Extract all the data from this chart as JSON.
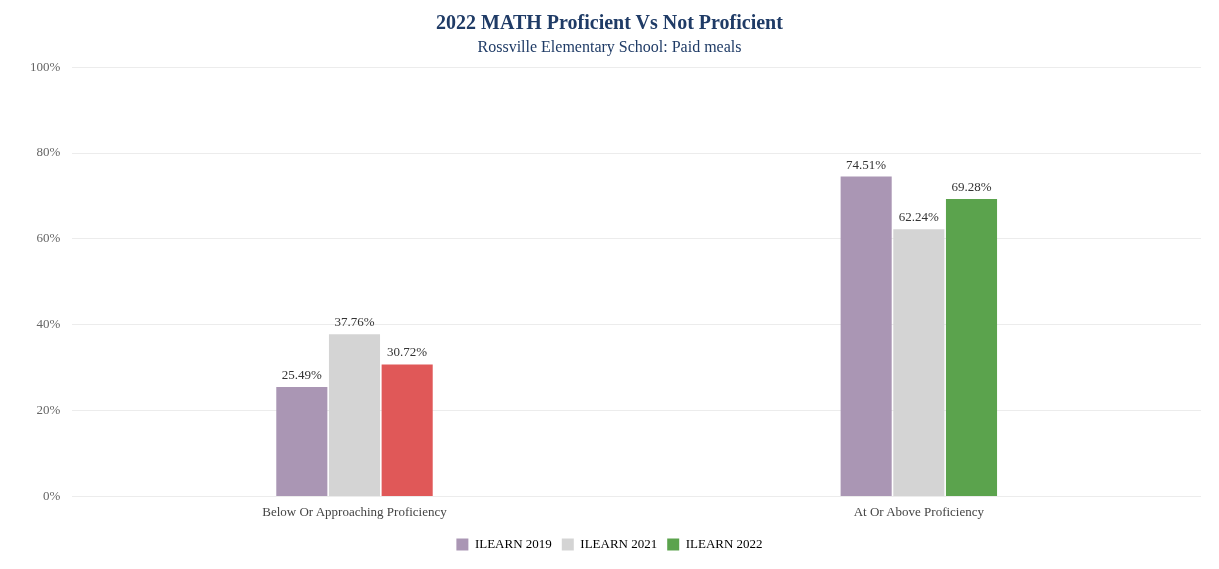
{
  "chart_data": {
    "type": "bar",
    "title": "2022 MATH Proficient Vs Not Proficient",
    "subtitle": "Rossville Elementary School: Paid meals",
    "categories": [
      "Below Or Approaching Proficiency",
      "At Or Above Proficiency"
    ],
    "series": [
      {
        "name": "ILEARN 2019",
        "color": "#aa96b4",
        "values": [
          25.49,
          74.51
        ],
        "value_labels": [
          "25.49%",
          "74.51%"
        ]
      },
      {
        "name": "ILEARN 2021",
        "color": "#d4d4d4",
        "values": [
          37.76,
          62.24
        ],
        "value_labels": [
          "37.76%",
          "62.24%"
        ]
      },
      {
        "name": "ILEARN 2022",
        "color": "#5ba34d",
        "colors": [
          "#e05858",
          "#5ba34d"
        ],
        "values": [
          30.72,
          69.28
        ],
        "value_labels": [
          "30.72%",
          "69.28%"
        ]
      }
    ],
    "ylim": [
      0,
      100
    ],
    "yticks": [
      {
        "value": 0,
        "label": "0%"
      },
      {
        "value": 20,
        "label": "20%"
      },
      {
        "value": 40,
        "label": "40%"
      },
      {
        "value": 60,
        "label": "60%"
      },
      {
        "value": 80,
        "label": "80%"
      },
      {
        "value": 100,
        "label": "100%"
      }
    ],
    "grid": "y",
    "legend": "bottom"
  }
}
